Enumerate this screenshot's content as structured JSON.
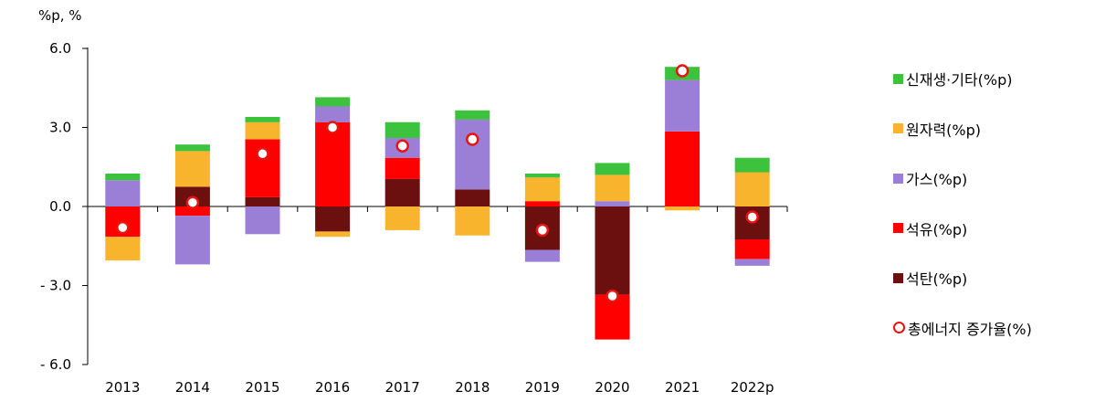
{
  "chart_data": {
    "type": "bar",
    "unit_label": "%p, %",
    "categories": [
      "2013",
      "2014",
      "2015",
      "2016",
      "2017",
      "2018",
      "2019",
      "2020",
      "2021",
      "2022p"
    ],
    "ylim": [
      -6.0,
      6.0
    ],
    "yticks": [
      6.0,
      3.0,
      0.0,
      -3.0,
      -6.0
    ],
    "ytick_labels": [
      "6.0",
      "3.0",
      "0.0",
      "- 3.0",
      "- 6.0"
    ],
    "series": [
      {
        "name": "석탄(%p)",
        "color": "#6b0f0f",
        "values": [
          0.0,
          0.75,
          0.35,
          -0.95,
          1.05,
          0.65,
          -1.65,
          -3.35,
          0.0,
          -1.25
        ]
      },
      {
        "name": "석유(%p)",
        "color": "#ff0000",
        "values": [
          -1.15,
          -0.35,
          2.2,
          3.2,
          0.8,
          0.0,
          0.2,
          -1.7,
          2.85,
          -0.75
        ]
      },
      {
        "name": "가스(%p)",
        "color": "#9b7fd6",
        "values": [
          1.0,
          -1.85,
          -1.05,
          0.6,
          0.75,
          2.65,
          -0.45,
          0.2,
          1.95,
          -0.25
        ]
      },
      {
        "name": "원자력(%p)",
        "color": "#f9b42d",
        "values": [
          -0.9,
          1.35,
          0.65,
          -0.2,
          -0.9,
          -1.1,
          0.9,
          1.0,
          -0.15,
          1.3
        ]
      },
      {
        "name": "신재생·기타(%p)",
        "color": "#3cc23c",
        "values": [
          0.25,
          0.25,
          0.2,
          0.35,
          0.6,
          0.35,
          0.15,
          0.45,
          0.5,
          0.55
        ]
      }
    ],
    "line_series": {
      "name": "총에너지 증가율(%)",
      "color": "#e8140f",
      "values": [
        -0.8,
        0.15,
        2.0,
        3.0,
        2.3,
        2.55,
        -0.9,
        -3.4,
        5.15,
        -0.4
      ]
    },
    "legend_order": [
      "신재생·기타(%p)",
      "원자력(%p)",
      "가스(%p)",
      "석유(%p)",
      "석탄(%p)",
      "총에너지 증가율(%)"
    ],
    "legend_position": "right",
    "grid": false
  }
}
